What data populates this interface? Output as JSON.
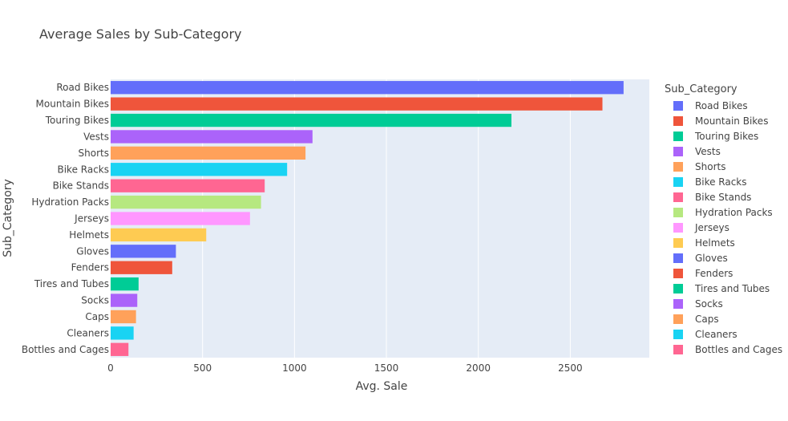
{
  "chart_data": {
    "type": "bar",
    "orientation": "horizontal",
    "title": "Average Sales by Sub-Category",
    "xlabel": "Avg. Sale",
    "ylabel": "Sub_Category",
    "legend_title": "Sub_Category",
    "legend_position": "right",
    "grid": true,
    "xlim": [
      0,
      2930
    ],
    "xticks": [
      0,
      500,
      1000,
      1500,
      2000,
      2500
    ],
    "categories": [
      "Road Bikes",
      "Mountain Bikes",
      "Touring Bikes",
      "Vests",
      "Shorts",
      "Bike Racks",
      "Bike Stands",
      "Hydration Packs",
      "Jerseys",
      "Helmets",
      "Gloves",
      "Fenders",
      "Tires and Tubes",
      "Socks",
      "Caps",
      "Cleaners",
      "Bottles and Cages"
    ],
    "values": [
      2790,
      2675,
      2180,
      1098,
      1060,
      960,
      838,
      818,
      758,
      520,
      355,
      335,
      152,
      145,
      138,
      125,
      97
    ],
    "colors": [
      "#636efa",
      "#EF553B",
      "#00cc96",
      "#ab63fa",
      "#FFA15A",
      "#19d3f3",
      "#FF6692",
      "#B6E880",
      "#FF97FF",
      "#FECB52",
      "#636efa",
      "#EF553B",
      "#00cc96",
      "#ab63fa",
      "#FFA15A",
      "#19d3f3",
      "#FF6692"
    ],
    "plot_bg": "#E5ECF6",
    "grid_color": "#ffffff"
  }
}
